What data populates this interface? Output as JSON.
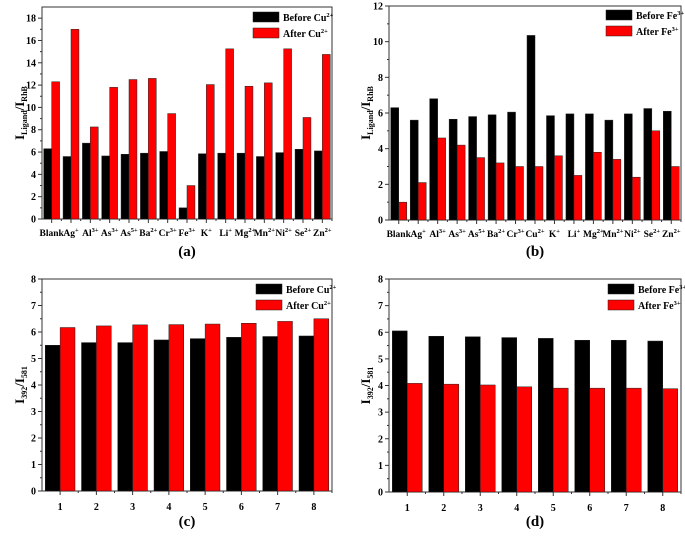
{
  "colors": {
    "before": "#000000",
    "after": "#ff0000",
    "axis": "#333333"
  },
  "chart_data": [
    {
      "panel": "(a)",
      "type": "bar",
      "ylabel": {
        "main": "I",
        "sub": "Ligand",
        "sep": "/I",
        "sub2": "RhB"
      },
      "ylim": [
        0,
        19
      ],
      "yticks": [
        0,
        2,
        4,
        6,
        8,
        10,
        12,
        14,
        16,
        18
      ],
      "legend_position": "top-right",
      "categories": [
        {
          "base": "Blank",
          "sup": ""
        },
        {
          "base": "Ag",
          "sup": "+"
        },
        {
          "base": "Al",
          "sup": "3+"
        },
        {
          "base": "As",
          "sup": "3+"
        },
        {
          "base": "As",
          "sup": "5+"
        },
        {
          "base": "Ba",
          "sup": "2+"
        },
        {
          "base": "Cr",
          "sup": "3+"
        },
        {
          "base": "Fe",
          "sup": "3+"
        },
        {
          "base": "K",
          "sup": "+"
        },
        {
          "base": "Li",
          "sup": "+"
        },
        {
          "base": "Mg",
          "sup": "2+"
        },
        {
          "base": "Mn",
          "sup": "2+"
        },
        {
          "base": "Ni",
          "sup": "2+"
        },
        {
          "base": "Se",
          "sup": "2+"
        },
        {
          "base": "Zn",
          "sup": "2+"
        }
      ],
      "series": [
        {
          "name": "Before Cu",
          "sup": "2+",
          "color": "#000000",
          "values": [
            6.3,
            5.6,
            6.8,
            5.65,
            5.8,
            5.9,
            6.05,
            1.0,
            5.85,
            5.9,
            5.9,
            5.6,
            5.95,
            6.25,
            6.1
          ]
        },
        {
          "name": "After Cu",
          "sup": "2+",
          "color": "#ff0000",
          "values": [
            12.3,
            17.0,
            8.25,
            11.8,
            12.5,
            12.6,
            9.45,
            3.0,
            12.05,
            15.25,
            11.9,
            12.2,
            15.25,
            9.1,
            14.75
          ]
        }
      ]
    },
    {
      "panel": "(b)",
      "type": "bar",
      "ylabel": {
        "main": "I",
        "sub": "Ligand",
        "sep": "/I",
        "sub2": "RhB"
      },
      "ylim": [
        0,
        12
      ],
      "yticks": [
        0,
        2,
        4,
        6,
        8,
        10,
        12
      ],
      "legend_position": "top-right",
      "categories": [
        {
          "base": "Blank",
          "sup": ""
        },
        {
          "base": "Ag",
          "sup": "+"
        },
        {
          "base": "Al",
          "sup": "3+"
        },
        {
          "base": "As",
          "sup": "3+"
        },
        {
          "base": "As",
          "sup": "5+"
        },
        {
          "base": "Ba",
          "sup": "2+"
        },
        {
          "base": "Cr",
          "sup": "3+"
        },
        {
          "base": "Cu",
          "sup": "2+"
        },
        {
          "base": "K",
          "sup": "+"
        },
        {
          "base": "Li",
          "sup": "+"
        },
        {
          "base": "Mg",
          "sup": "2+"
        },
        {
          "base": "Mn",
          "sup": "2+"
        },
        {
          "base": "Ni",
          "sup": "2+"
        },
        {
          "base": "Se",
          "sup": "2+"
        },
        {
          "base": "Zn",
          "sup": "2+"
        }
      ],
      "series": [
        {
          "name": "Before Fe",
          "sup": "3+",
          "color": "#000000",
          "values": [
            6.3,
            5.6,
            6.8,
            5.65,
            5.8,
            5.9,
            6.05,
            10.35,
            5.85,
            5.95,
            5.95,
            5.6,
            5.95,
            6.25,
            6.1
          ]
        },
        {
          "name": "After Fe",
          "sup": "3+",
          "color": "#ff0000",
          "values": [
            1.0,
            2.1,
            4.6,
            4.2,
            3.5,
            3.2,
            3.0,
            3.0,
            3.6,
            2.5,
            3.8,
            3.4,
            2.4,
            5.0,
            3.0
          ]
        }
      ]
    },
    {
      "panel": "(c)",
      "type": "bar",
      "ylabel": {
        "main": "I",
        "sub": "392",
        "sep": "/I",
        "sub2": "581"
      },
      "ylim": [
        0,
        8
      ],
      "yticks": [
        0,
        1,
        2,
        3,
        4,
        5,
        6,
        7,
        8
      ],
      "legend_position": "top-right",
      "categories": [
        {
          "base": "1",
          "sup": ""
        },
        {
          "base": "2",
          "sup": ""
        },
        {
          "base": "3",
          "sup": ""
        },
        {
          "base": "4",
          "sup": ""
        },
        {
          "base": "5",
          "sup": ""
        },
        {
          "base": "6",
          "sup": ""
        },
        {
          "base": "7",
          "sup": ""
        },
        {
          "base": "8",
          "sup": ""
        }
      ],
      "series": [
        {
          "name": "Before Cu",
          "sup": "2+",
          "color": "#000000",
          "values": [
            5.5,
            5.6,
            5.6,
            5.7,
            5.75,
            5.8,
            5.83,
            5.85
          ]
        },
        {
          "name": "After Cu",
          "sup": "2+",
          "color": "#ff0000",
          "values": [
            6.17,
            6.23,
            6.27,
            6.28,
            6.3,
            6.33,
            6.4,
            6.5
          ]
        }
      ]
    },
    {
      "panel": "(d)",
      "type": "bar",
      "ylabel": {
        "main": "I",
        "sub": "392",
        "sep": "/I",
        "sub2": "581"
      },
      "ylim": [
        0,
        8
      ],
      "yticks": [
        0,
        1,
        2,
        3,
        4,
        5,
        6,
        7,
        8
      ],
      "legend_position": "top-right",
      "categories": [
        {
          "base": "1",
          "sup": ""
        },
        {
          "base": "2",
          "sup": ""
        },
        {
          "base": "3",
          "sup": ""
        },
        {
          "base": "4",
          "sup": ""
        },
        {
          "base": "5",
          "sup": ""
        },
        {
          "base": "6",
          "sup": ""
        },
        {
          "base": "7",
          "sup": ""
        },
        {
          "base": "8",
          "sup": ""
        }
      ],
      "series": [
        {
          "name": "Before Fe",
          "sup": "3+",
          "color": "#000000",
          "values": [
            6.05,
            5.85,
            5.83,
            5.8,
            5.77,
            5.7,
            5.7,
            5.67
          ]
        },
        {
          "name": "After Fe",
          "sup": "3+",
          "color": "#ff0000",
          "values": [
            4.08,
            4.05,
            4.02,
            3.95,
            3.9,
            3.9,
            3.9,
            3.88
          ]
        }
      ]
    }
  ]
}
